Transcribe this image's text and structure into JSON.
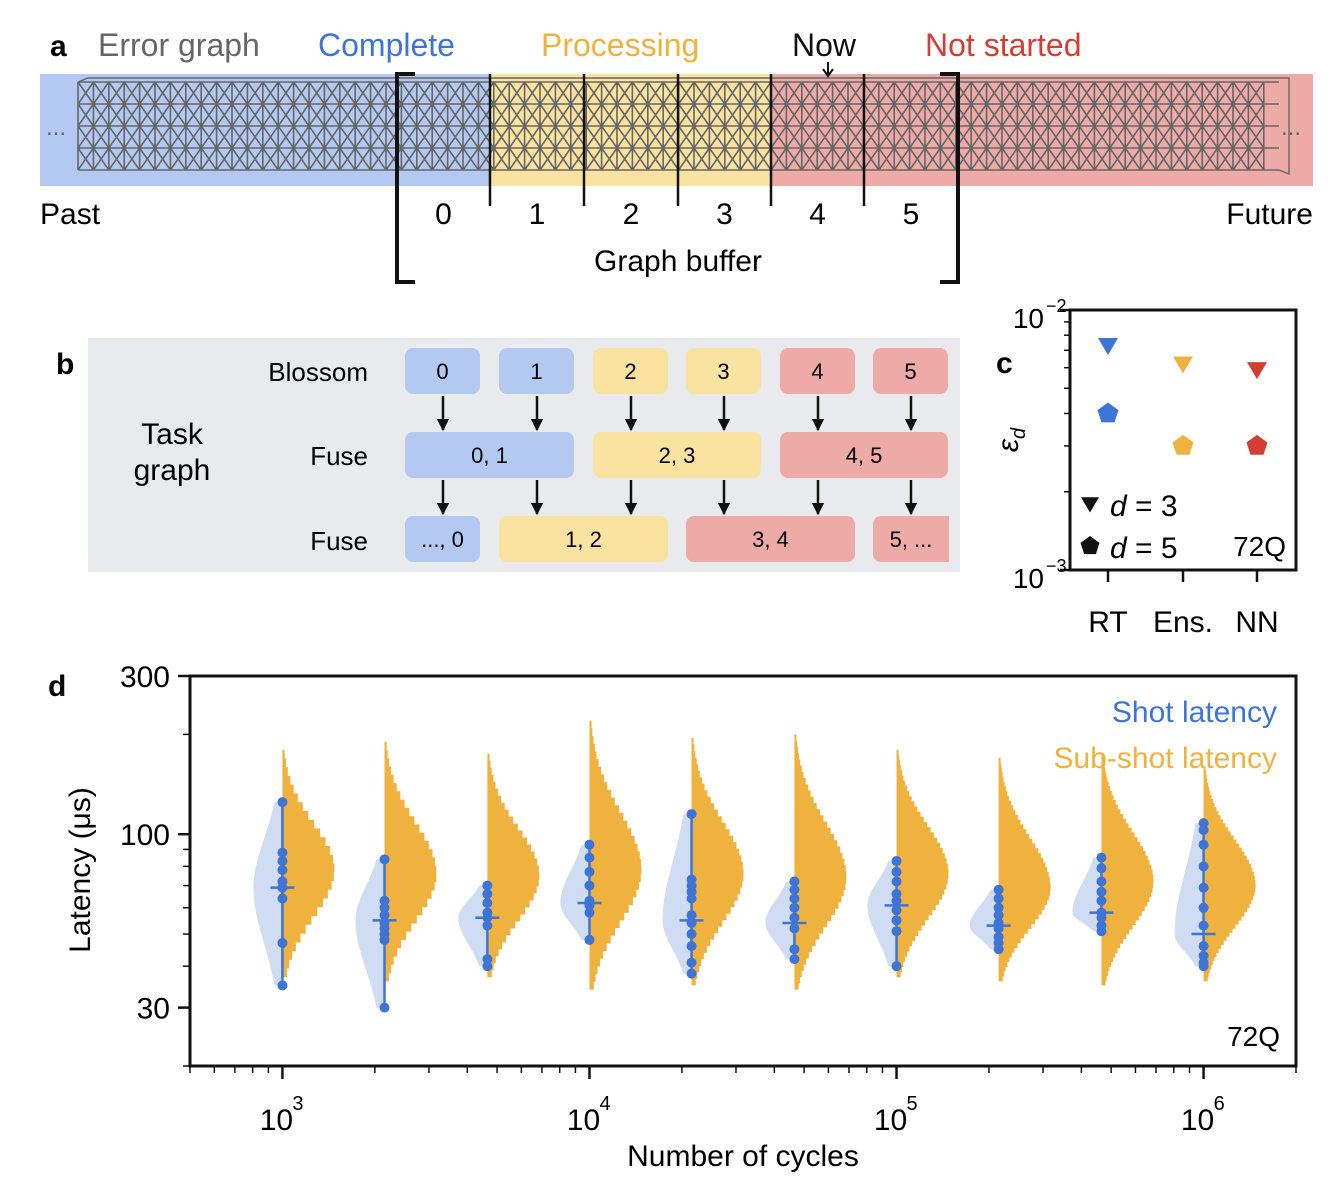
{
  "panel_a": {
    "label": "a",
    "legend": {
      "error_graph": "Error graph",
      "complete": "Complete",
      "processing": "Processing",
      "now": "Now",
      "not_started": "Not started"
    },
    "past": "Past",
    "future": "Future",
    "ellipsis": "...",
    "buffer_label": "Graph buffer",
    "segments": [
      "0",
      "1",
      "2",
      "3",
      "4",
      "5"
    ],
    "segment_status": [
      "complete",
      "processing",
      "processing",
      "processing",
      "not-started",
      "not-started"
    ],
    "colors": {
      "complete": "#b3c9f2",
      "processing": "#fae3a0",
      "not_started": "#eeaaa6",
      "grid": "#666666",
      "complete_text": "#3e74d6",
      "processing_text": "#f0b23e",
      "not_started_text": "#d23e33",
      "error_graph_text": "#666666"
    }
  },
  "panel_b": {
    "label": "b",
    "task_graph": [
      "Task",
      "graph"
    ],
    "rows": [
      {
        "name": "Blossom",
        "boxes": [
          {
            "label": "0",
            "status": "complete"
          },
          {
            "label": "1",
            "status": "complete"
          },
          {
            "label": "2",
            "status": "processing"
          },
          {
            "label": "3",
            "status": "processing"
          },
          {
            "label": "4",
            "status": "not-started"
          },
          {
            "label": "5",
            "status": "not-started"
          }
        ]
      },
      {
        "name": "Fuse",
        "boxes": [
          {
            "label": "0, 1",
            "status": "complete"
          },
          {
            "label": "2, 3",
            "status": "processing"
          },
          {
            "label": "4, 5",
            "status": "not-started"
          }
        ]
      },
      {
        "name": "Fuse",
        "boxes": [
          {
            "label": "..., 0",
            "status": "complete"
          },
          {
            "label": "1, 2",
            "status": "processing"
          },
          {
            "label": "3, 4",
            "status": "not-started"
          },
          {
            "label": "5, ...",
            "status": "not-started"
          }
        ]
      }
    ]
  },
  "chart_data": [
    {
      "panel": "c",
      "type": "scatter",
      "ylabel": "ε_d",
      "yscale": "log",
      "ylim": [
        0.001,
        0.01
      ],
      "y_ticks": [
        {
          "value": 0.001,
          "base": "10",
          "exp": "−3"
        },
        {
          "value": 0.01,
          "base": "10",
          "exp": "−2"
        }
      ],
      "categories": [
        "RT",
        "Ens.",
        "NN"
      ],
      "series": [
        {
          "name": "d = 3",
          "marker": "triangle-down",
          "values": [
            0.0073,
            0.0062,
            0.0059
          ]
        },
        {
          "name": "d = 5",
          "marker": "pentagon",
          "values": [
            0.004,
            0.003,
            0.003
          ]
        }
      ],
      "point_colors": [
        "#3e74d6",
        "#f0b23e",
        "#d23e33"
      ],
      "legend": [
        {
          "symbol": "d",
          "text": " = 3",
          "marker": "triangle-down"
        },
        {
          "symbol": "d",
          "text": " = 5",
          "marker": "pentagon"
        }
      ],
      "annotation": "72Q"
    },
    {
      "panel": "d",
      "type": "scatter",
      "xlabel": "Number of cycles",
      "ylabel": "Latency (μs)",
      "xscale": "log",
      "yscale": "log",
      "xlim": [
        500,
        2000000
      ],
      "ylim": [
        20,
        300
      ],
      "x_ticks": [
        {
          "value": 1000,
          "base": "10",
          "exp": "3"
        },
        {
          "value": 10000,
          "base": "10",
          "exp": "4"
        },
        {
          "value": 100000,
          "base": "10",
          "exp": "5"
        },
        {
          "value": 1000000,
          "base": "10",
          "exp": "6"
        }
      ],
      "y_ticks": [
        30,
        100,
        300
      ],
      "legend": [
        "Shot latency",
        "Sub-shot latency"
      ],
      "annotation": "72Q",
      "colors": {
        "shot": "#3e74d6",
        "shot_violin": "#cfdcf4",
        "subshot": "#f0b23e"
      },
      "groups": [
        {
          "cycles": 1000,
          "shot_median": 69,
          "shot_points": [
            125,
            88,
            83,
            78,
            72,
            69,
            64,
            47,
            35
          ],
          "shot_range": [
            35,
            125
          ],
          "subshot_range": [
            37,
            180
          ],
          "subshot_mode": 78
        },
        {
          "cycles": 2150,
          "shot_median": 55,
          "shot_points": [
            84,
            63,
            60,
            57,
            54,
            52,
            50,
            48,
            30
          ],
          "shot_range": [
            30,
            84
          ],
          "subshot_range": [
            36,
            190
          ],
          "subshot_mode": 76
        },
        {
          "cycles": 4650,
          "shot_median": 56,
          "shot_points": [
            70,
            66,
            62,
            58,
            56,
            53,
            42,
            40
          ],
          "shot_range": [
            40,
            70
          ],
          "subshot_range": [
            37,
            175
          ],
          "subshot_mode": 75
        },
        {
          "cycles": 10000,
          "shot_median": 62,
          "shot_points": [
            93,
            85,
            77,
            70,
            63,
            61,
            58,
            48
          ],
          "shot_range": [
            48,
            93
          ],
          "subshot_range": [
            34,
            220
          ],
          "subshot_mode": 78
        },
        {
          "cycles": 21500,
          "shot_median": 55,
          "shot_points": [
            115,
            73,
            70,
            67,
            64,
            57,
            54,
            50,
            46,
            41,
            38
          ],
          "shot_range": [
            38,
            115
          ],
          "subshot_range": [
            35,
            195
          ],
          "subshot_mode": 76
        },
        {
          "cycles": 46500,
          "shot_median": 54,
          "shot_points": [
            72,
            68,
            64,
            60,
            56,
            52,
            45,
            42
          ],
          "shot_range": [
            42,
            72
          ],
          "subshot_range": [
            34,
            200
          ],
          "subshot_mode": 74
        },
        {
          "cycles": 100000,
          "shot_median": 61,
          "shot_points": [
            83,
            77,
            72,
            66,
            63,
            59,
            55,
            51,
            40
          ],
          "shot_range": [
            40,
            83
          ],
          "subshot_range": [
            37,
            180
          ],
          "subshot_mode": 76
        },
        {
          "cycles": 215000,
          "shot_median": 53,
          "shot_points": [
            68,
            64,
            60,
            57,
            54,
            52,
            49,
            47,
            45
          ],
          "shot_range": [
            45,
            68
          ],
          "subshot_range": [
            36,
            170
          ],
          "subshot_mode": 69
        },
        {
          "cycles": 465000,
          "shot_median": 58,
          "shot_points": [
            85,
            79,
            72,
            67,
            63,
            58,
            56,
            53,
            51
          ],
          "shot_range": [
            51,
            85
          ],
          "subshot_range": [
            35,
            175
          ],
          "subshot_mode": 72
        },
        {
          "cycles": 1000000,
          "shot_median": 50,
          "shot_points": [
            108,
            103,
            93,
            80,
            69,
            60,
            53,
            46,
            43,
            41,
            40
          ],
          "shot_range": [
            40,
            108
          ],
          "subshot_range": [
            36,
            160
          ],
          "subshot_mode": 70
        }
      ]
    }
  ]
}
